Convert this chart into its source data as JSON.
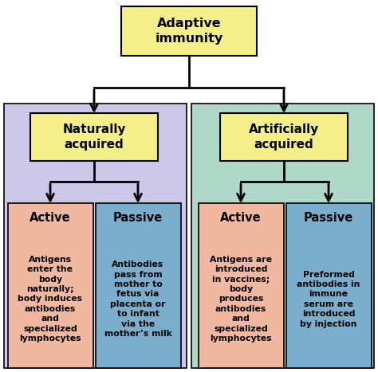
{
  "title": "Adaptive\nimmunity",
  "title_box_color": "#f5ef8a",
  "bg_color": "#ffffff",
  "level2_labels": [
    "Naturally\nacquired",
    "Artificially\nacquired"
  ],
  "level2_box_color": "#f5ef8a",
  "level2_bg_colors": [
    "#cdc8e8",
    "#b0d8c8"
  ],
  "level3_labels": [
    "Active",
    "Passive",
    "Active",
    "Passive"
  ],
  "level3_box_colors": [
    "#f0b8a0",
    "#7aaecc",
    "#f0b8a0",
    "#7aaecc"
  ],
  "level3_texts": [
    "Antigens\nenter the\nbody\nnaturally;\nbody induces\nantibodies\nand\nspecialized\nlymphocytes",
    "Antibodies\npass from\nmother to\nfetus via\nplacenta or\nto infant\nvia the\nmother’s milk",
    "Antigens are\nintroduced\nin vaccines;\nbody\nproduces\nantibodies\nand\nspecialized\nlymphocytes",
    "Preformed\nantibodies in\nimmune\nserum are\nintroduced\nby injection"
  ],
  "arrow_color": "#000000"
}
